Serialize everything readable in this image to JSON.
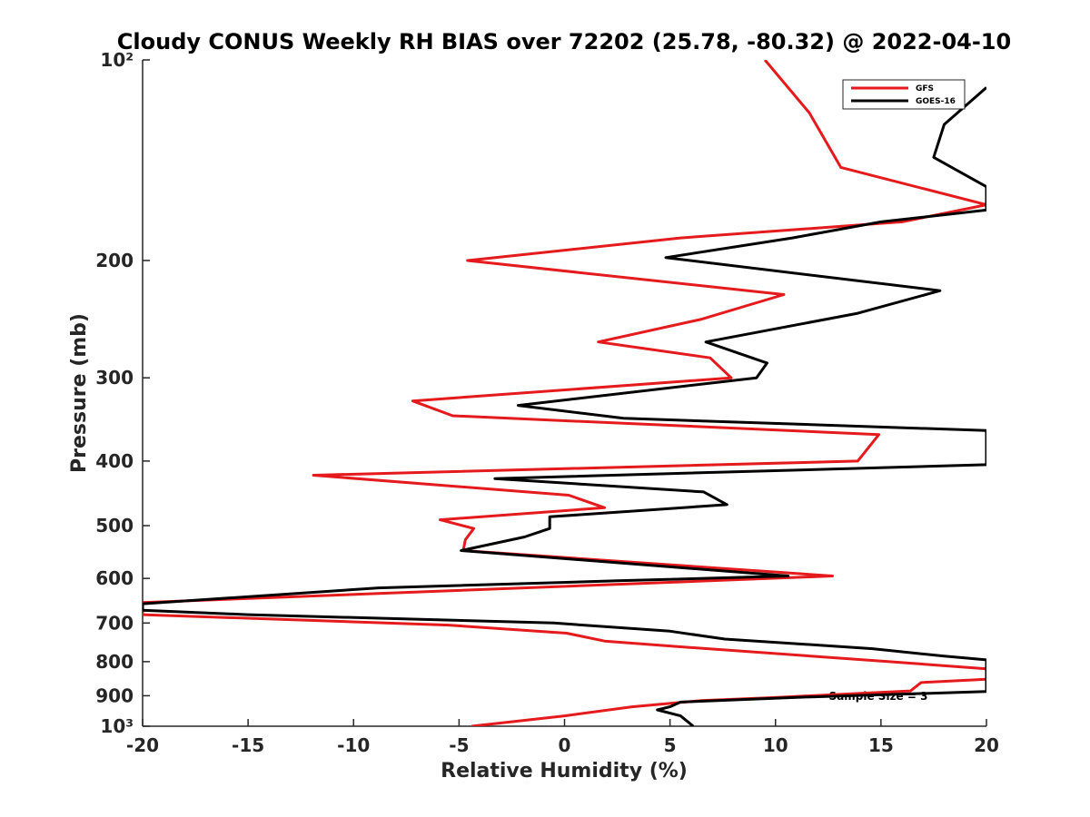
{
  "chart_data": {
    "type": "line",
    "title": "Cloudy CONUS Weekly RH BIAS over 72202 (25.78, -80.32) @ 2022-04-10",
    "xlabel": "Relative Humidity (%)",
    "ylabel": "Pressure (mb)",
    "xlim": [
      -20,
      20
    ],
    "ylim": [
      100,
      1000
    ],
    "yscale": "log",
    "y_reversed": true,
    "grid": false,
    "legend_position": "top-right",
    "x_ticks": [
      -20,
      -15,
      -10,
      -5,
      0,
      5,
      10,
      15,
      20
    ],
    "x_tick_labels": [
      "-20",
      "-15",
      "-10",
      "-5",
      "0",
      "5",
      "10",
      "15",
      "20"
    ],
    "y_ticks": [
      100,
      200,
      300,
      400,
      500,
      600,
      700,
      800,
      900,
      1000
    ],
    "y_tick_labels": [
      "10²",
      "200",
      "300",
      "400",
      "500",
      "600",
      "700",
      "800",
      "900",
      "10³"
    ],
    "annotation": "Sample Size = 3",
    "series": [
      {
        "name": "GFS",
        "color": "#e41a1c",
        "points": [
          [
            9.5,
            100
          ],
          [
            11.6,
            120
          ],
          [
            13.1,
            145
          ],
          [
            20.0,
            165
          ],
          [
            16.0,
            175
          ],
          [
            5.5,
            185
          ],
          [
            -4.6,
            200
          ],
          [
            10.4,
            225
          ],
          [
            6.5,
            245
          ],
          [
            1.6,
            265
          ],
          [
            6.9,
            280
          ],
          [
            7.9,
            300
          ],
          [
            -7.2,
            325
          ],
          [
            -5.3,
            342
          ],
          [
            14.9,
            365
          ],
          [
            13.9,
            400
          ],
          [
            -11.9,
            420
          ],
          [
            0.2,
            450
          ],
          [
            1.9,
            470
          ],
          [
            -5.9,
            490
          ],
          [
            -4.3,
            505
          ],
          [
            -4.7,
            525
          ],
          [
            -4.8,
            545
          ],
          [
            12.7,
            595
          ],
          [
            4.0,
            610
          ],
          [
            -20.0,
            652
          ],
          [
            -20.0,
            680
          ],
          [
            -5.5,
            705
          ],
          [
            0.1,
            725
          ],
          [
            1.9,
            745
          ],
          [
            5.5,
            760
          ],
          [
            15.4,
            800
          ],
          [
            20.0,
            820
          ],
          [
            20.0,
            850
          ],
          [
            16.9,
            860
          ],
          [
            16.4,
            885
          ],
          [
            10.1,
            905
          ],
          [
            6.5,
            915
          ],
          [
            3.2,
            935
          ],
          [
            0.0,
            965
          ],
          [
            -4.4,
            1000
          ]
        ]
      },
      {
        "name": "GOES-16",
        "color": "#000000",
        "points": [
          [
            20.0,
            110
          ],
          [
            18.0,
            125
          ],
          [
            17.5,
            140
          ],
          [
            20.0,
            155
          ],
          [
            20.0,
            168
          ],
          [
            15.0,
            175
          ],
          [
            10.8,
            185
          ],
          [
            4.8,
            198
          ],
          [
            17.8,
            222
          ],
          [
            13.9,
            240
          ],
          [
            6.7,
            265
          ],
          [
            9.6,
            285
          ],
          [
            9.1,
            300
          ],
          [
            -2.2,
            330
          ],
          [
            2.8,
            345
          ],
          [
            20.0,
            360
          ],
          [
            20.0,
            405
          ],
          [
            -3.3,
            425
          ],
          [
            6.6,
            445
          ],
          [
            7.7,
            465
          ],
          [
            -0.7,
            485
          ],
          [
            -0.7,
            505
          ],
          [
            -1.9,
            520
          ],
          [
            -4.9,
            545
          ],
          [
            10.6,
            595
          ],
          [
            2.5,
            605
          ],
          [
            -8.8,
            620
          ],
          [
            -20.0,
            655
          ],
          [
            -20.0,
            670
          ],
          [
            -15.0,
            680
          ],
          [
            -0.5,
            700
          ],
          [
            5.0,
            720
          ],
          [
            7.6,
            740
          ],
          [
            14.6,
            765
          ],
          [
            18.0,
            785
          ],
          [
            20.0,
            795
          ],
          [
            20.0,
            887
          ],
          [
            11.0,
            905
          ],
          [
            5.5,
            920
          ],
          [
            5.0,
            935
          ],
          [
            4.4,
            945
          ],
          [
            5.5,
            965
          ],
          [
            6.1,
            1000
          ]
        ]
      }
    ]
  }
}
